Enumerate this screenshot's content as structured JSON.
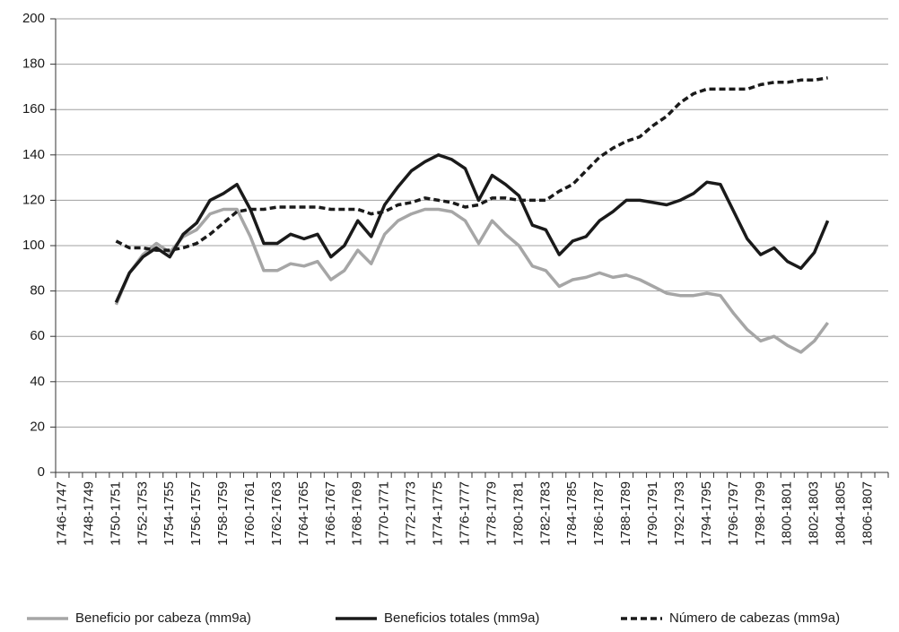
{
  "chart_data": {
    "type": "line",
    "categories": [
      "1746-1747",
      null,
      "1748-1749",
      null,
      "1750-1751",
      null,
      "1752-1753",
      null,
      "1754-1755",
      null,
      "1756-1757",
      null,
      "1758-1759",
      null,
      "1760-1761",
      null,
      "1762-1763",
      null,
      "1764-1765",
      null,
      "1766-1767",
      null,
      "1768-1769",
      null,
      "1770-1771",
      null,
      "1772-1773",
      null,
      "1774-1775",
      null,
      "1776-1777",
      null,
      "1778-1779",
      null,
      "1780-1781",
      null,
      "1782-1783",
      null,
      "1784-1785",
      null,
      "1786-1787",
      null,
      "1788-1789",
      null,
      "1790-1791",
      null,
      "1792-1793",
      null,
      "1794-1795",
      null,
      "1796-1797",
      null,
      "1798-1799",
      null,
      "1800-1801",
      null,
      "1802-1803",
      null,
      "1804-1805",
      null,
      "1806-1807",
      null
    ],
    "series": [
      {
        "name": "Beneficio por cabeza (mm9a)",
        "color": "#a6a6a6",
        "dash": false,
        "values": [
          null,
          null,
          null,
          null,
          74,
          88,
          96,
          101,
          97,
          104,
          107,
          114,
          116,
          116,
          104,
          89,
          89,
          92,
          91,
          93,
          85,
          89,
          98,
          92,
          105,
          111,
          114,
          116,
          116,
          115,
          111,
          101,
          111,
          105,
          100,
          91,
          89,
          82,
          85,
          86,
          88,
          86,
          87,
          85,
          82,
          79,
          78,
          78,
          79,
          78,
          70,
          63,
          58,
          60,
          56,
          53,
          58,
          66,
          null,
          null,
          null,
          null
        ]
      },
      {
        "name": "Beneficios totales (mm9a)",
        "color": "#1a1a1a",
        "dash": false,
        "values": [
          null,
          null,
          null,
          null,
          75,
          88,
          95,
          99,
          95,
          105,
          110,
          120,
          123,
          127,
          116,
          101,
          101,
          105,
          103,
          105,
          95,
          100,
          111,
          104,
          118,
          126,
          133,
          137,
          140,
          138,
          134,
          120,
          131,
          127,
          122,
          109,
          107,
          96,
          102,
          104,
          111,
          115,
          120,
          120,
          119,
          118,
          120,
          123,
          128,
          127,
          115,
          103,
          96,
          99,
          93,
          90,
          97,
          111,
          null,
          null,
          null,
          null
        ]
      },
      {
        "name": "Número de cabezas (mm9a)",
        "color": "#1a1a1a",
        "dash": true,
        "values": [
          null,
          null,
          null,
          null,
          102,
          99,
          99,
          98,
          98,
          99,
          101,
          105,
          110,
          115,
          116,
          116,
          117,
          117,
          117,
          117,
          116,
          116,
          116,
          114,
          115,
          118,
          119,
          121,
          120,
          119,
          117,
          118,
          121,
          121,
          120,
          120,
          120,
          124,
          127,
          133,
          139,
          143,
          146,
          148,
          153,
          157,
          163,
          167,
          169,
          169,
          169,
          169,
          171,
          172,
          172,
          173,
          173,
          174,
          null,
          null,
          null,
          null
        ]
      }
    ],
    "ylim": [
      0,
      200
    ],
    "yticks": [
      0,
      20,
      40,
      60,
      80,
      100,
      120,
      140,
      160,
      180,
      200
    ],
    "grid": true
  }
}
